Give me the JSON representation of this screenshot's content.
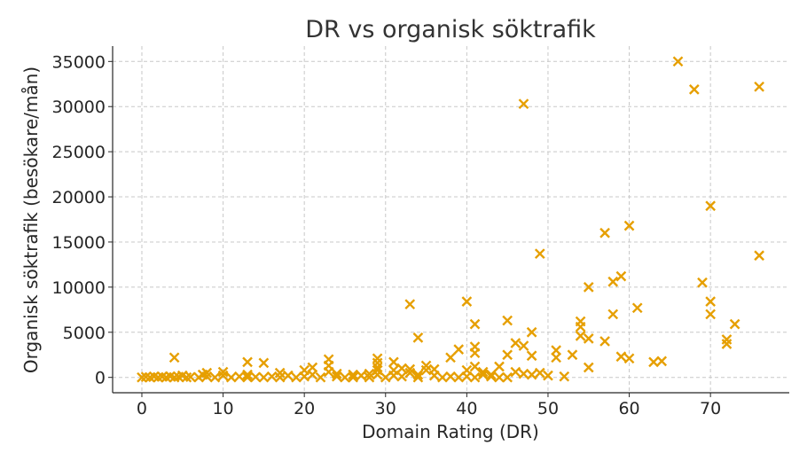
{
  "chart_data": {
    "type": "scatter",
    "title": "DR vs organisk söktrafik",
    "xlabel": "Domain Rating (DR)",
    "ylabel": "Organisk söktrafik (besökare/mån)",
    "xlim": [
      -3.6,
      79.7
    ],
    "ylim": [
      -1700,
      36700
    ],
    "xticks": [
      0,
      10,
      20,
      30,
      40,
      50,
      60,
      70
    ],
    "yticks": [
      0,
      5000,
      10000,
      15000,
      20000,
      25000,
      30000,
      35000
    ],
    "grid": true,
    "marker": "x",
    "color": "#E69F00",
    "points": [
      [
        66,
        35000
      ],
      [
        68,
        31900
      ],
      [
        76,
        32200
      ],
      [
        47,
        30300
      ],
      [
        70,
        19000
      ],
      [
        57,
        16000
      ],
      [
        60,
        16800
      ],
      [
        49,
        13700
      ],
      [
        76,
        13500
      ],
      [
        59,
        11200
      ],
      [
        58,
        10600
      ],
      [
        55,
        10000
      ],
      [
        69,
        10500
      ],
      [
        40,
        8400
      ],
      [
        33,
        8100
      ],
      [
        70,
        8400
      ],
      [
        61,
        7700
      ],
      [
        58,
        7000
      ],
      [
        70,
        7000
      ],
      [
        41,
        5900
      ],
      [
        54,
        6200
      ],
      [
        54,
        5600
      ],
      [
        73,
        5900
      ],
      [
        45,
        6300
      ],
      [
        48,
        5000
      ],
      [
        34,
        4400
      ],
      [
        54,
        4600
      ],
      [
        55,
        4300
      ],
      [
        57,
        4000
      ],
      [
        46,
        3800
      ],
      [
        47,
        3500
      ],
      [
        72,
        4200
      ],
      [
        72,
        3700
      ],
      [
        39,
        3100
      ],
      [
        51,
        3000
      ],
      [
        51,
        2200
      ],
      [
        41,
        3400
      ],
      [
        41,
        2700
      ],
      [
        53,
        2500
      ],
      [
        45,
        2500
      ],
      [
        48,
        2400
      ],
      [
        38,
        2200
      ],
      [
        59,
        2300
      ],
      [
        60,
        2100
      ],
      [
        63,
        1700
      ],
      [
        64,
        1800
      ],
      [
        4,
        2200
      ],
      [
        13,
        1700
      ],
      [
        15,
        1600
      ],
      [
        23,
        2000
      ],
      [
        29,
        2100
      ],
      [
        29,
        1600
      ],
      [
        31,
        1700
      ],
      [
        44,
        1200
      ],
      [
        55,
        1100
      ],
      [
        35,
        1300
      ],
      [
        41,
        1200
      ],
      [
        40,
        800
      ],
      [
        46,
        600
      ],
      [
        47,
        400
      ],
      [
        49,
        500
      ],
      [
        48,
        300
      ],
      [
        50,
        200
      ],
      [
        52,
        100
      ],
      [
        23,
        1300
      ],
      [
        29,
        1100
      ],
      [
        33,
        900
      ],
      [
        36,
        900
      ],
      [
        42,
        600
      ],
      [
        43,
        300
      ],
      [
        0,
        0
      ],
      [
        0.5,
        50
      ],
      [
        1,
        0
      ],
      [
        1.5,
        100
      ],
      [
        2,
        0
      ],
      [
        2.5,
        80
      ],
      [
        3,
        0
      ],
      [
        3.5,
        120
      ],
      [
        4,
        0
      ],
      [
        4.5,
        60
      ],
      [
        5,
        200
      ],
      [
        5.5,
        0
      ],
      [
        6,
        50
      ],
      [
        7,
        0
      ],
      [
        7.5,
        300
      ],
      [
        8,
        100
      ],
      [
        8,
        500
      ],
      [
        9,
        0
      ],
      [
        10,
        200
      ],
      [
        10,
        600
      ],
      [
        11,
        0
      ],
      [
        12,
        100
      ],
      [
        13,
        300
      ],
      [
        13,
        0
      ],
      [
        14,
        50
      ],
      [
        15,
        0
      ],
      [
        16,
        100
      ],
      [
        17,
        500
      ],
      [
        17,
        0
      ],
      [
        18,
        200
      ],
      [
        19,
        0
      ],
      [
        20,
        800
      ],
      [
        20,
        100
      ],
      [
        21,
        1100
      ],
      [
        21,
        300
      ],
      [
        22,
        0
      ],
      [
        23,
        600
      ],
      [
        24,
        400
      ],
      [
        24,
        100
      ],
      [
        25,
        0
      ],
      [
        26,
        300
      ],
      [
        26,
        0
      ],
      [
        27,
        200
      ],
      [
        28,
        0
      ],
      [
        28,
        400
      ],
      [
        29,
        800
      ],
      [
        29,
        300
      ],
      [
        30,
        0
      ],
      [
        31,
        200
      ],
      [
        31,
        800
      ],
      [
        32,
        1000
      ],
      [
        32,
        100
      ],
      [
        33,
        500
      ],
      [
        34,
        300
      ],
      [
        34,
        0
      ],
      [
        35,
        800
      ],
      [
        36,
        200
      ],
      [
        37,
        0
      ],
      [
        38,
        100
      ],
      [
        39,
        0
      ],
      [
        40,
        100
      ],
      [
        41,
        0
      ],
      [
        42,
        300
      ],
      [
        43,
        100
      ],
      [
        44,
        0
      ],
      [
        45,
        0
      ]
    ]
  }
}
